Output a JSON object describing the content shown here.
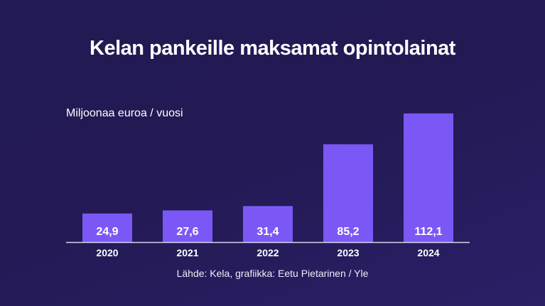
{
  "colors": {
    "bar": "#7b58f6",
    "axis": "#d8d4ee",
    "text": "#ffffff"
  },
  "chart_data": {
    "type": "bar",
    "title": "Kelan pankeille maksamat opintolainat",
    "ylabel": "Miljoonaa euroa / vuosi",
    "categories": [
      "2020",
      "2021",
      "2022",
      "2023",
      "2024"
    ],
    "values": [
      24.9,
      27.6,
      31.4,
      85.2,
      112.1
    ],
    "value_labels": [
      "24,9",
      "27,6",
      "31,4",
      "85,2",
      "112,1"
    ],
    "ylim": [
      0,
      120
    ],
    "grid": false,
    "source": "Lähde: Kela, grafiikka: Eetu Pietarinen / Yle"
  }
}
